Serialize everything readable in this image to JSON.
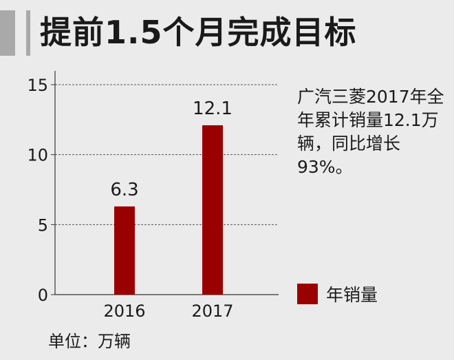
{
  "title": "提前1.5个月完成目标",
  "note": "广汽三菱2017年全年累计销量12.1万辆，同比增长93%。",
  "unit_label": "单位：万辆",
  "colors": {
    "bar": "#9b0000",
    "background": "#ebebeb",
    "accent": "#a9a9a9"
  },
  "chart_data": {
    "type": "bar",
    "categories": [
      "2016",
      "2017"
    ],
    "series": [
      {
        "name": "年销量",
        "values": [
          6.3,
          12.1
        ]
      }
    ],
    "data_labels": [
      "6.3",
      "12.1"
    ],
    "ylim": [
      0,
      15
    ],
    "yticks": [
      0,
      5,
      10,
      15
    ],
    "grid": true,
    "legend": "right"
  }
}
